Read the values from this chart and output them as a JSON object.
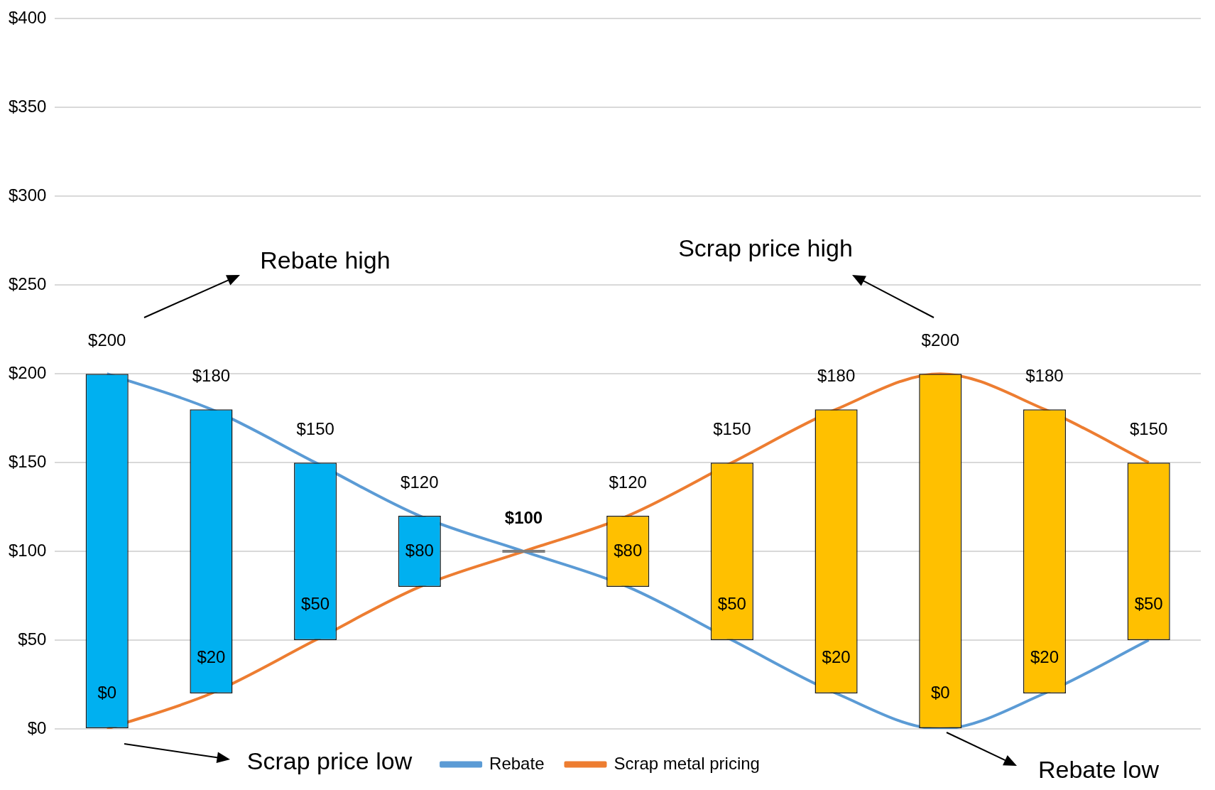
{
  "chart_data": {
    "type": "bar",
    "categories": [
      null,
      null,
      null,
      null,
      null,
      null,
      null,
      null,
      null,
      null,
      null
    ],
    "series": [
      {
        "values": [
          200,
          160,
          100,
          40,
          0,
          40,
          100,
          160,
          200,
          160,
          100
        ],
        "base": [
          0,
          20,
          50,
          80,
          100,
          80,
          50,
          20,
          0,
          20,
          50
        ],
        "colors": [
          "#00b0f0",
          "#00b0f0",
          "#00b0f0",
          "#00b0f0",
          "#7f7f7f",
          "#ffc000",
          "#ffc000",
          "#ffc000",
          "#ffc000",
          "#ffc000",
          "#ffc000"
        ]
      },
      {
        "type": "line",
        "name": "Rebate",
        "color": "#5b9bd5",
        "values": [
          200,
          180,
          150,
          120,
          100,
          80,
          50,
          20,
          0,
          20,
          50
        ],
        "value_labels": [
          "$200",
          "$180",
          "$150",
          "$120",
          "$100",
          "$80",
          "$50",
          "$20",
          "$0",
          "$20",
          "$50"
        ]
      },
      {
        "type": "line",
        "name": "Scrap metal pricing",
        "color": "#ed7d31",
        "values": [
          0,
          20,
          50,
          80,
          100,
          120,
          150,
          180,
          200,
          180,
          150
        ],
        "value_labels": [
          "$0",
          "$20",
          "$50",
          "$80",
          null,
          "$120",
          "$150",
          "$180",
          "$200",
          "$180",
          "$150"
        ]
      }
    ],
    "ylim": [
      0,
      400
    ],
    "yticks": [
      {
        "value": 0,
        "label": "$0"
      },
      {
        "value": 50,
        "label": "$50"
      },
      {
        "value": 100,
        "label": "$100"
      },
      {
        "value": 150,
        "label": "$150"
      },
      {
        "value": 200,
        "label": "$200"
      },
      {
        "value": 250,
        "label": "$250"
      },
      {
        "value": 300,
        "label": "$300"
      },
      {
        "value": 350,
        "label": "$350"
      },
      {
        "value": 400,
        "label": "$400"
      }
    ],
    "grid": "y",
    "legend": "bottom",
    "tick_labels": "y",
    "marker": "none",
    "annotations": [
      "Rebate high",
      "Scrap price high",
      "Scrap price low",
      "Rebate low"
    ]
  }
}
